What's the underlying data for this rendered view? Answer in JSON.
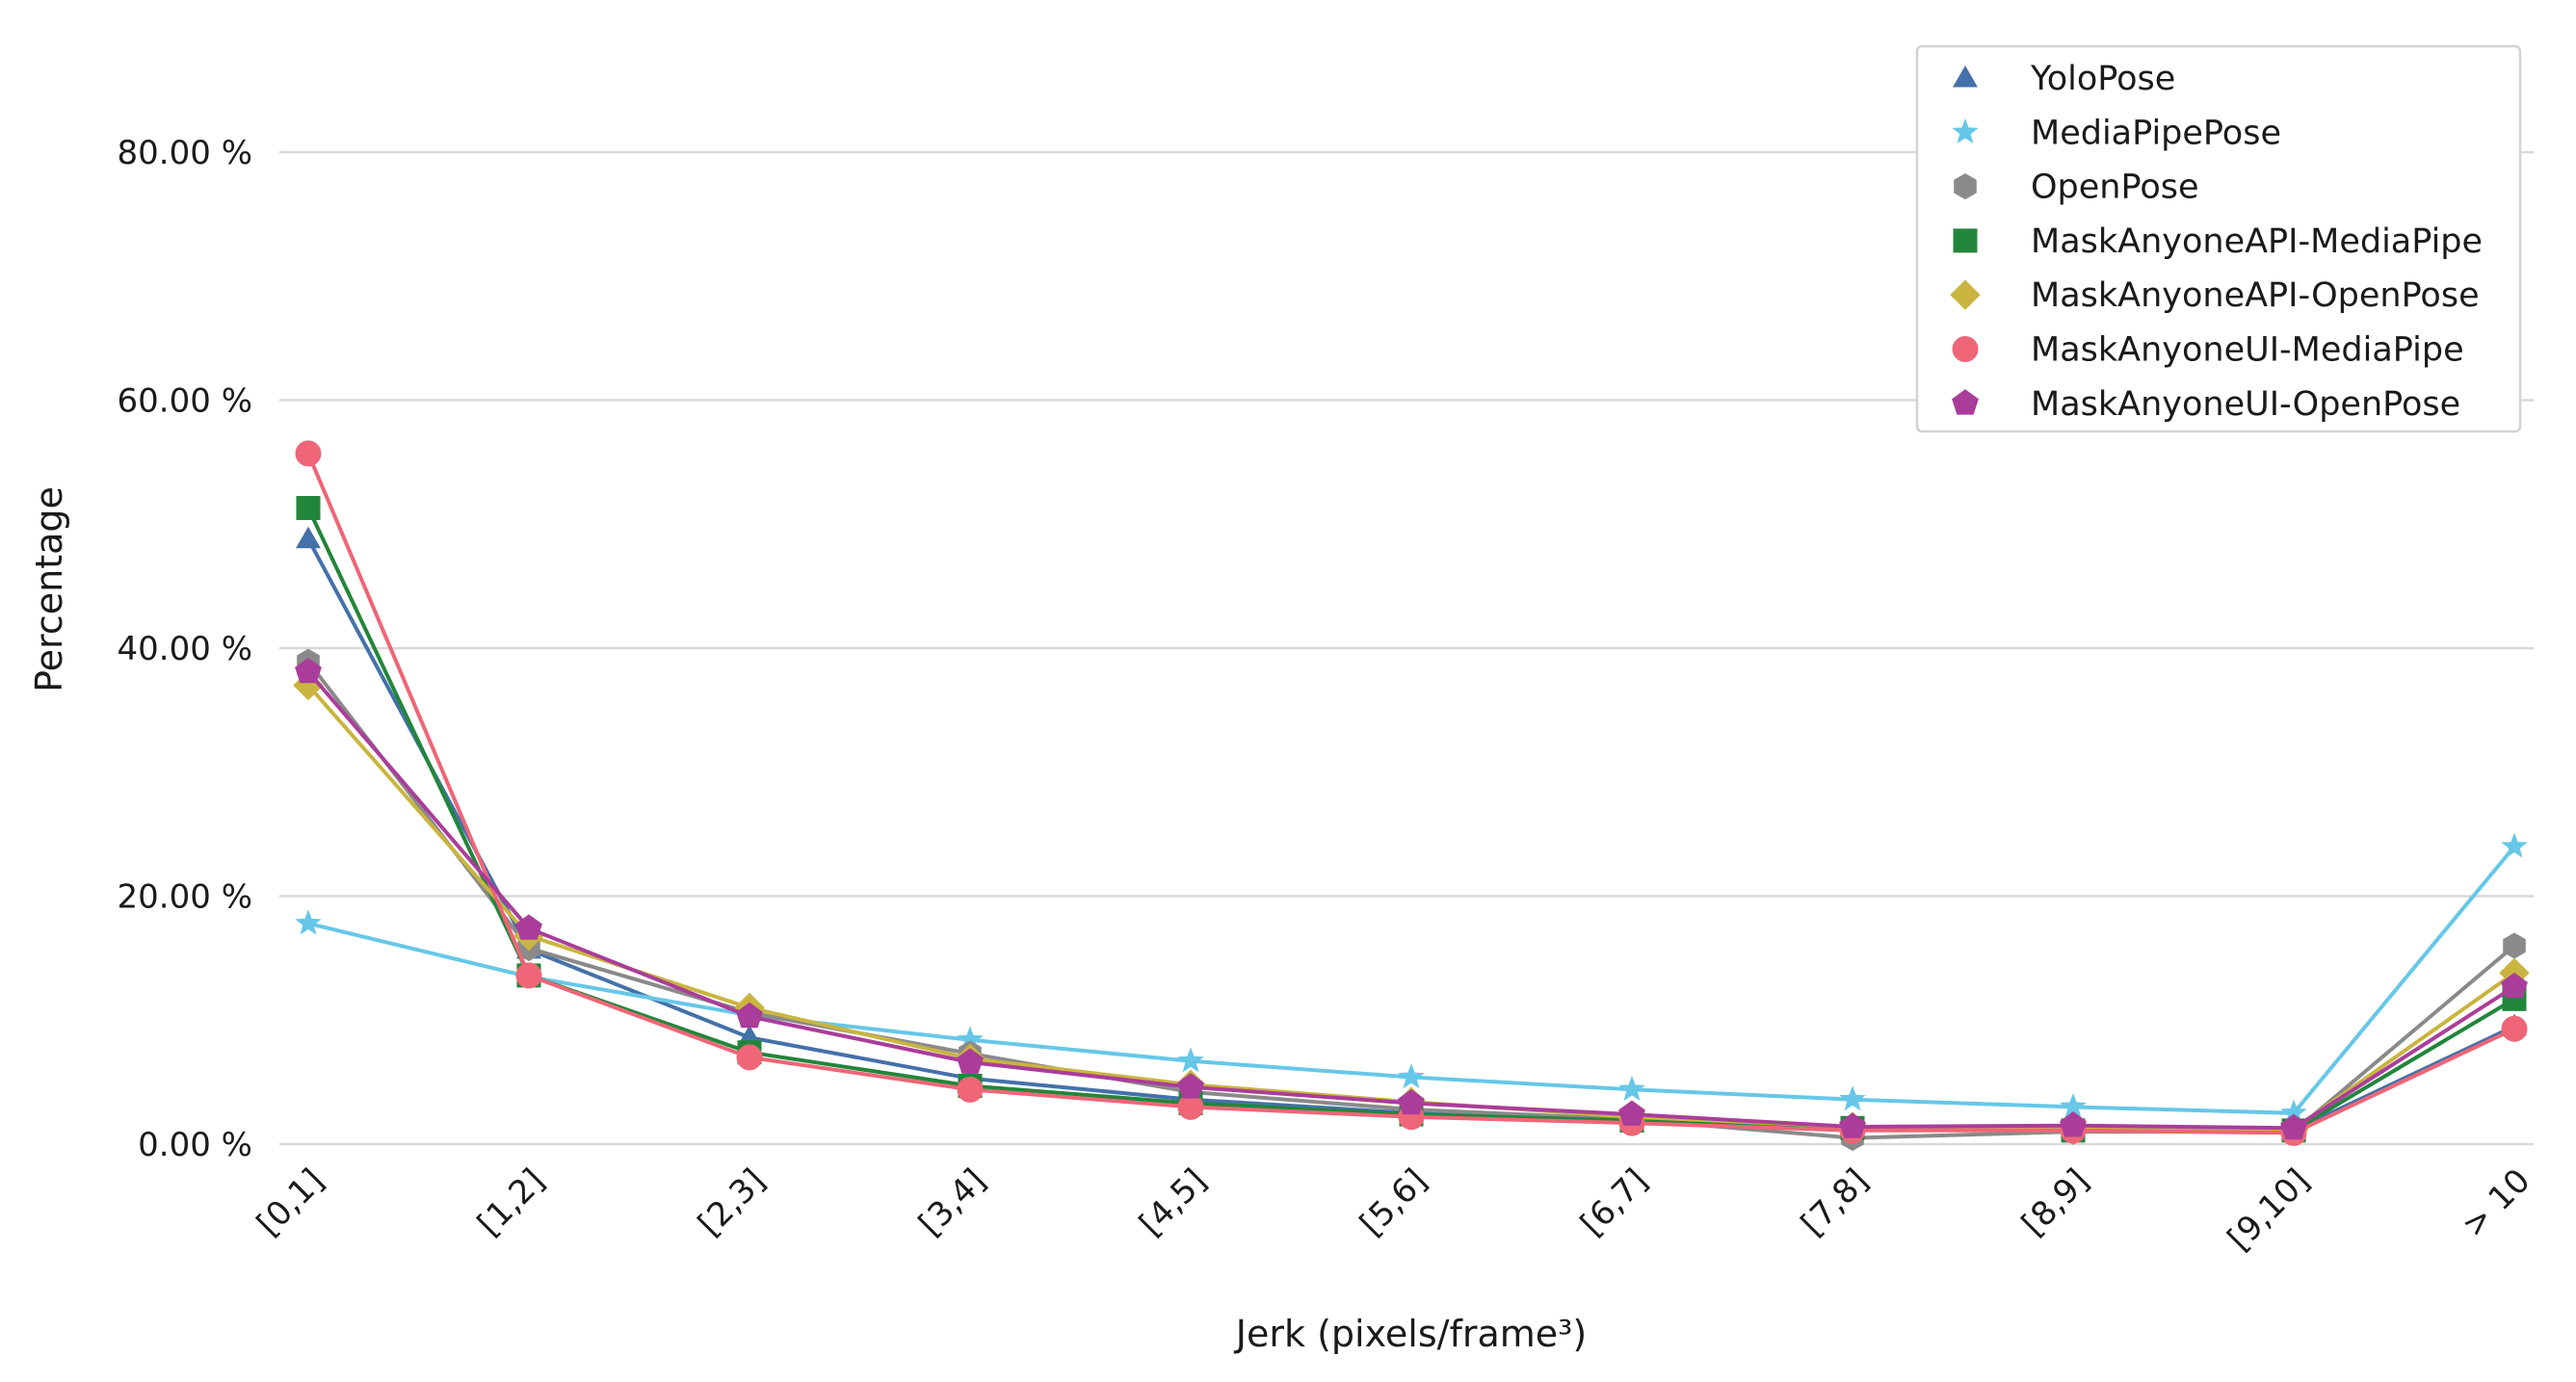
{
  "chart_data": {
    "type": "line",
    "xlabel": "Jerk (pixels/frame³)",
    "ylabel": "Percentage",
    "categories": [
      "[0,1]",
      "[1,2]",
      "[2,3]",
      "[3,4]",
      "[4,5]",
      "[5,6]",
      "[6,7]",
      "[7,8]",
      "[8,9]",
      "[9,10]",
      "> 10"
    ],
    "yticks": [
      0,
      20,
      40,
      60,
      80
    ],
    "ytick_labels": [
      "0.00 %",
      "20.00 %",
      "40.00 %",
      "60.00 %",
      "80.00 %"
    ],
    "ylim": [
      0,
      90
    ],
    "grid": "horizontal",
    "legend_position": "top-right",
    "series": [
      {
        "name": "YoloPose",
        "marker": "triangle",
        "color": "#4471aa",
        "values": [
          48.8,
          15.7,
          8.6,
          5.3,
          3.6,
          2.5,
          1.9,
          1.2,
          1.3,
          1.1,
          9.5
        ]
      },
      {
        "name": "MediaPipePose",
        "marker": "star",
        "color": "#66c7e8",
        "values": [
          17.8,
          13.5,
          10.4,
          8.4,
          6.7,
          5.4,
          4.4,
          3.6,
          3.0,
          2.5,
          24.0
        ]
      },
      {
        "name": "OpenPose",
        "marker": "hexagon",
        "color": "#8a8a8a",
        "values": [
          38.9,
          15.8,
          10.6,
          7.3,
          4.2,
          2.8,
          2.0,
          0.5,
          1.0,
          1.0,
          16.0
        ]
      },
      {
        "name": "MaskAnyoneAPI-MediaPipe",
        "marker": "square",
        "color": "#22863a",
        "values": [
          51.3,
          13.6,
          7.4,
          4.7,
          3.3,
          2.4,
          1.9,
          1.3,
          1.1,
          1.1,
          11.7
        ]
      },
      {
        "name": "MaskAnyoneAPI-OpenPose",
        "marker": "diamond",
        "color": "#c9b53f",
        "values": [
          37.0,
          16.8,
          11.0,
          6.9,
          4.8,
          3.4,
          2.2,
          1.4,
          1.4,
          1.2,
          13.8
        ]
      },
      {
        "name": "MaskAnyoneUI-MediaPipe",
        "marker": "circle",
        "color": "#ee6677",
        "values": [
          55.7,
          13.6,
          7.0,
          4.4,
          3.0,
          2.2,
          1.7,
          1.1,
          1.1,
          0.9,
          9.3
        ]
      },
      {
        "name": "MaskAnyoneUI-OpenPose",
        "marker": "pentagon",
        "color": "#aa3d9a",
        "values": [
          38.1,
          17.4,
          10.3,
          6.6,
          4.6,
          3.3,
          2.4,
          1.4,
          1.5,
          1.3,
          12.7
        ]
      }
    ]
  }
}
